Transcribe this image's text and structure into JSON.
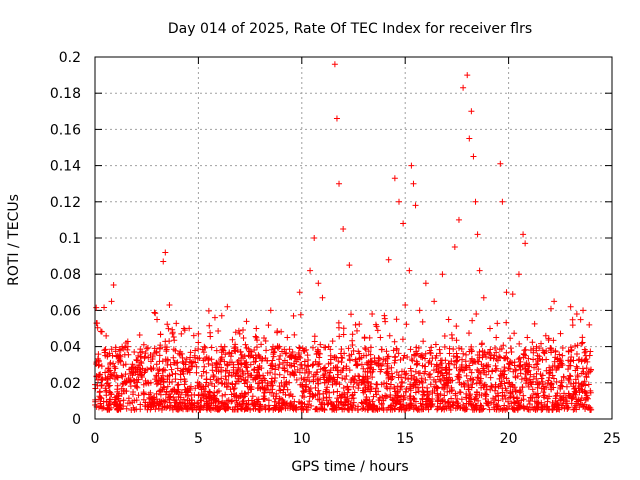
{
  "chart_data": {
    "type": "scatter",
    "title": "Day 014 of 2025, Rate Of TEC Index for receiver flrs",
    "xlabel": "GPS time / hours",
    "ylabel": "ROTI / TECUs",
    "xlim": [
      0,
      25
    ],
    "ylim": [
      0,
      0.2
    ],
    "x_ticks": [
      0,
      5,
      10,
      15,
      20,
      25
    ],
    "x_tick_labels": [
      "0",
      "5",
      "10",
      "15",
      "20",
      "25"
    ],
    "y_ticks": [
      0,
      0.02,
      0.04,
      0.06,
      0.08,
      0.1,
      0.12,
      0.14,
      0.16,
      0.18,
      0.2
    ],
    "y_tick_labels": [
      "0",
      "0.02",
      "0.04",
      "0.06",
      "0.08",
      "0.1",
      "0.12",
      "0.14",
      "0.16",
      "0.18",
      "0.2"
    ],
    "grid": true,
    "marker": "+",
    "color": "#ff0000",
    "series": [
      {
        "name": "ROTI",
        "x": [
          0.0,
          0.1,
          0.2,
          0.3,
          0.5,
          0.8,
          0.9,
          1.1,
          1.5,
          1.7,
          2.0,
          2.3,
          2.7,
          3.0,
          3.1,
          3.3,
          3.4,
          3.6,
          4.0,
          4.3,
          4.6,
          5.0,
          5.4,
          5.8,
          6.1,
          6.4,
          6.7,
          7.0,
          7.4,
          7.8,
          8.1,
          8.5,
          8.9,
          9.3,
          9.6,
          9.9,
          10.2,
          10.4,
          10.6,
          10.8,
          11.0,
          11.3,
          11.6,
          11.7,
          11.8,
          12.0,
          12.3,
          12.6,
          13.0,
          13.4,
          13.8,
          14.2,
          14.5,
          14.7,
          14.9,
          15.0,
          15.2,
          15.3,
          15.4,
          15.5,
          15.7,
          16.0,
          16.4,
          16.8,
          17.1,
          17.4,
          17.6,
          17.8,
          18.0,
          18.1,
          18.2,
          18.3,
          18.4,
          18.5,
          18.6,
          18.8,
          19.1,
          19.4,
          19.6,
          19.7,
          19.9,
          20.2,
          20.5,
          20.7,
          20.8,
          21.0,
          21.4,
          21.8,
          22.2,
          22.6,
          23.0,
          23.3,
          23.6,
          23.9
        ],
        "y": [
          0.019,
          0.053,
          0.03,
          0.022,
          0.017,
          0.065,
          0.074,
          0.035,
          0.042,
          0.025,
          0.018,
          0.028,
          0.02,
          0.055,
          0.021,
          0.087,
          0.092,
          0.063,
          0.028,
          0.05,
          0.034,
          0.047,
          0.022,
          0.056,
          0.04,
          0.062,
          0.03,
          0.047,
          0.025,
          0.05,
          0.02,
          0.06,
          0.033,
          0.045,
          0.057,
          0.07,
          0.018,
          0.082,
          0.1,
          0.075,
          0.067,
          0.04,
          0.196,
          0.166,
          0.13,
          0.105,
          0.085,
          0.052,
          0.035,
          0.058,
          0.045,
          0.088,
          0.133,
          0.12,
          0.108,
          0.063,
          0.082,
          0.14,
          0.13,
          0.118,
          0.06,
          0.075,
          0.065,
          0.08,
          0.055,
          0.095,
          0.11,
          0.183,
          0.19,
          0.155,
          0.17,
          0.145,
          0.12,
          0.102,
          0.082,
          0.067,
          0.05,
          0.045,
          0.141,
          0.12,
          0.07,
          0.069,
          0.08,
          0.102,
          0.097,
          0.03,
          0.035,
          0.046,
          0.065,
          0.035,
          0.062,
          0.058,
          0.06,
          0.052
        ]
      }
    ],
    "baseline_band": {
      "x_range": [
        0,
        24
      ],
      "typical_min": 0.005,
      "typical_max": 0.04,
      "note": "dense band of low ROTI values throughout the day"
    }
  }
}
